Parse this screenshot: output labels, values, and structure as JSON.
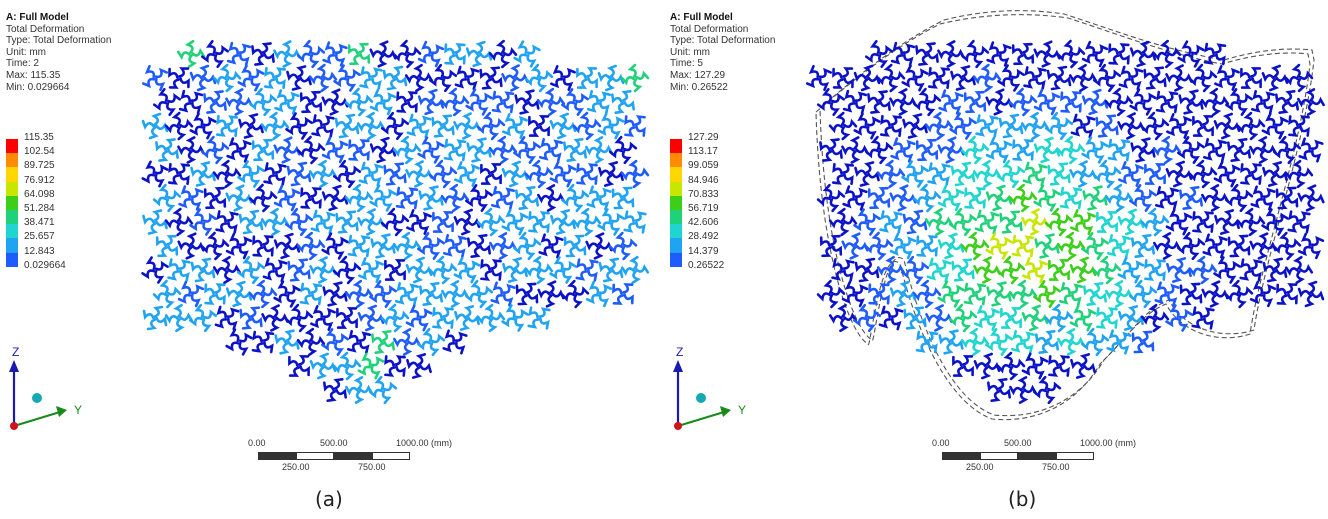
{
  "panels": [
    {
      "info": {
        "title": "A: Full Model",
        "lines": [
          "Total Deformation",
          "Type: Total Deformation",
          "Unit: mm",
          "Time: 2",
          "Max: 115.35",
          "Min: 0.029664"
        ]
      },
      "legend": [
        "115.35",
        "102.54",
        "89.725",
        "76.912",
        "64.098",
        "51.284",
        "38.471",
        "25.657",
        "12.843",
        "0.029664"
      ],
      "caption": "(a)"
    },
    {
      "info": {
        "title": "A: Full Model",
        "lines": [
          "Total Deformation",
          "Type: Total Deformation",
          "Unit: mm",
          "Time: 5",
          "Max: 127.29",
          "Min: 0.26522"
        ]
      },
      "legend": [
        "127.29",
        "113.17",
        "99.059",
        "84.946",
        "70.833",
        "56.719",
        "42.606",
        "28.492",
        "14.379",
        "0.26522"
      ],
      "caption": "(b)"
    }
  ],
  "legend_colors": [
    "#ff0000",
    "#ff8c00",
    "#ffd700",
    "#c8e600",
    "#3ccf1a",
    "#1fd27a",
    "#1ed6cf",
    "#1fa3f2",
    "#1f5cff",
    "#0b12c8"
  ],
  "scale_bar": {
    "top_labels": [
      "0.00",
      "500.00",
      "1000.00 (mm)"
    ],
    "bottom_labels": [
      "250.00",
      "750.00"
    ]
  },
  "axes": {
    "z": "Z",
    "y": "Y"
  }
}
